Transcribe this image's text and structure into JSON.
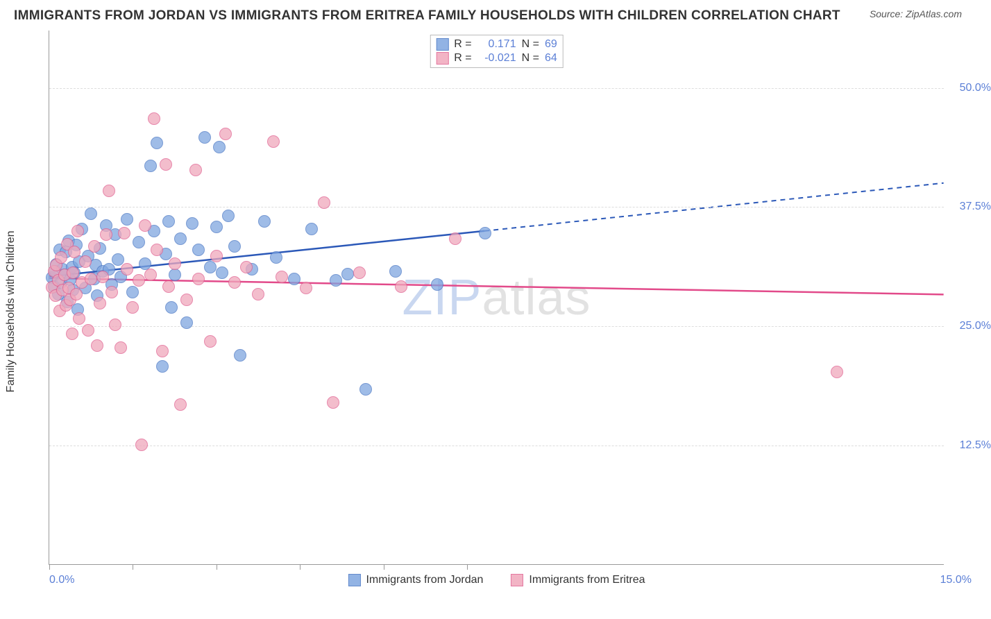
{
  "title": "IMMIGRANTS FROM JORDAN VS IMMIGRANTS FROM ERITREA FAMILY HOUSEHOLDS WITH CHILDREN CORRELATION CHART",
  "source_prefix": "Source: ",
  "source": "ZipAtlas.com",
  "ylabel": "Family Households with Children",
  "watermark_a": "ZIP",
  "watermark_b": "atlas",
  "chart": {
    "type": "scatter",
    "xlim": [
      0,
      15
    ],
    "ylim": [
      0,
      56
    ],
    "y_ticks": [
      12.5,
      25.0,
      37.5,
      50.0
    ],
    "y_tick_labels": [
      "12.5%",
      "25.0%",
      "37.5%",
      "50.0%"
    ],
    "x_tick_positions": [
      0,
      1.4,
      2.8,
      4.2,
      5.6,
      7.0
    ],
    "x_min_label": "0.0%",
    "x_max_label": "15.0%",
    "background_color": "#ffffff",
    "grid_color": "#dddddd",
    "axis_color": "#999999",
    "tick_label_color": "#5b7fd6",
    "point_radius": 9,
    "point_fill_opacity": 0.45,
    "series": [
      {
        "name": "Immigrants from Jordan",
        "color_fill": "#7fa6e0",
        "color_stroke": "#4a77c4",
        "r_value": "0.171",
        "n_value": "69",
        "trend": {
          "y_at_x0": 30.2,
          "y_at_x15": 40.0,
          "solid_until_x": 7.3
        },
        "trend_color": "#2b58b8",
        "points": [
          [
            0.05,
            30.1
          ],
          [
            0.08,
            29.2
          ],
          [
            0.1,
            30.8
          ],
          [
            0.12,
            31.5
          ],
          [
            0.15,
            28.4
          ],
          [
            0.18,
            33.0
          ],
          [
            0.2,
            29.6
          ],
          [
            0.22,
            31.0
          ],
          [
            0.25,
            30.4
          ],
          [
            0.28,
            32.8
          ],
          [
            0.3,
            27.6
          ],
          [
            0.32,
            34.0
          ],
          [
            0.35,
            29.9
          ],
          [
            0.38,
            31.2
          ],
          [
            0.4,
            28.8
          ],
          [
            0.42,
            30.6
          ],
          [
            0.45,
            33.5
          ],
          [
            0.48,
            26.8
          ],
          [
            0.5,
            31.8
          ],
          [
            0.55,
            35.2
          ],
          [
            0.6,
            29.0
          ],
          [
            0.65,
            32.4
          ],
          [
            0.7,
            36.8
          ],
          [
            0.75,
            30.0
          ],
          [
            0.78,
            31.4
          ],
          [
            0.8,
            28.2
          ],
          [
            0.85,
            33.2
          ],
          [
            0.9,
            30.8
          ],
          [
            0.95,
            35.6
          ],
          [
            1.0,
            31.0
          ],
          [
            1.05,
            29.4
          ],
          [
            1.1,
            34.6
          ],
          [
            1.15,
            32.0
          ],
          [
            1.2,
            30.2
          ],
          [
            1.3,
            36.2
          ],
          [
            1.4,
            28.6
          ],
          [
            1.5,
            33.8
          ],
          [
            1.6,
            31.6
          ],
          [
            1.7,
            41.8
          ],
          [
            1.75,
            35.0
          ],
          [
            1.8,
            44.2
          ],
          [
            1.9,
            20.8
          ],
          [
            1.95,
            32.6
          ],
          [
            2.0,
            36.0
          ],
          [
            2.1,
            30.4
          ],
          [
            2.2,
            34.2
          ],
          [
            2.3,
            25.4
          ],
          [
            2.4,
            35.8
          ],
          [
            2.5,
            33.0
          ],
          [
            2.6,
            44.8
          ],
          [
            2.7,
            31.2
          ],
          [
            2.8,
            35.4
          ],
          [
            2.85,
            43.8
          ],
          [
            2.9,
            30.6
          ],
          [
            3.0,
            36.6
          ],
          [
            3.1,
            33.4
          ],
          [
            3.2,
            22.0
          ],
          [
            3.4,
            31.0
          ],
          [
            3.6,
            36.0
          ],
          [
            3.8,
            32.2
          ],
          [
            4.1,
            30.0
          ],
          [
            4.4,
            35.2
          ],
          [
            4.8,
            29.8
          ],
          [
            5.0,
            30.5
          ],
          [
            5.3,
            18.4
          ],
          [
            5.8,
            30.8
          ],
          [
            6.5,
            29.4
          ],
          [
            7.3,
            34.8
          ],
          [
            2.05,
            27.0
          ]
        ]
      },
      {
        "name": "Immigrants from Eritrea",
        "color_fill": "#f0a8bc",
        "color_stroke": "#e06090",
        "r_value": "-0.021",
        "n_value": "64",
        "trend": {
          "y_at_x0": 30.0,
          "y_at_x15": 28.3,
          "solid_until_x": 15
        },
        "trend_color": "#e24a8a",
        "points": [
          [
            0.05,
            29.1
          ],
          [
            0.08,
            30.8
          ],
          [
            0.1,
            28.2
          ],
          [
            0.12,
            31.4
          ],
          [
            0.15,
            29.8
          ],
          [
            0.18,
            26.6
          ],
          [
            0.2,
            32.2
          ],
          [
            0.22,
            28.8
          ],
          [
            0.25,
            30.4
          ],
          [
            0.28,
            27.2
          ],
          [
            0.3,
            33.6
          ],
          [
            0.32,
            29.0
          ],
          [
            0.35,
            27.8
          ],
          [
            0.38,
            24.2
          ],
          [
            0.4,
            30.6
          ],
          [
            0.42,
            32.8
          ],
          [
            0.45,
            28.4
          ],
          [
            0.48,
            35.0
          ],
          [
            0.5,
            25.8
          ],
          [
            0.55,
            29.6
          ],
          [
            0.6,
            31.8
          ],
          [
            0.65,
            24.6
          ],
          [
            0.7,
            30.0
          ],
          [
            0.75,
            33.4
          ],
          [
            0.8,
            23.0
          ],
          [
            0.85,
            27.4
          ],
          [
            0.9,
            30.2
          ],
          [
            0.95,
            34.6
          ],
          [
            1.0,
            39.2
          ],
          [
            1.05,
            28.6
          ],
          [
            1.1,
            25.2
          ],
          [
            1.2,
            22.8
          ],
          [
            1.3,
            31.0
          ],
          [
            1.4,
            27.0
          ],
          [
            1.5,
            29.8
          ],
          [
            1.55,
            12.6
          ],
          [
            1.6,
            35.6
          ],
          [
            1.7,
            30.4
          ],
          [
            1.75,
            46.8
          ],
          [
            1.8,
            33.0
          ],
          [
            1.9,
            22.4
          ],
          [
            1.95,
            42.0
          ],
          [
            2.0,
            29.2
          ],
          [
            2.1,
            31.6
          ],
          [
            2.2,
            16.8
          ],
          [
            2.3,
            27.8
          ],
          [
            2.45,
            41.4
          ],
          [
            2.5,
            30.0
          ],
          [
            2.7,
            23.4
          ],
          [
            2.8,
            32.4
          ],
          [
            2.95,
            45.2
          ],
          [
            3.1,
            29.6
          ],
          [
            3.3,
            31.2
          ],
          [
            3.5,
            28.4
          ],
          [
            3.75,
            44.4
          ],
          [
            3.9,
            30.2
          ],
          [
            4.3,
            29.0
          ],
          [
            4.6,
            38.0
          ],
          [
            4.75,
            17.0
          ],
          [
            5.2,
            30.6
          ],
          [
            5.9,
            29.2
          ],
          [
            6.8,
            34.2
          ],
          [
            13.2,
            20.2
          ],
          [
            1.25,
            34.8
          ]
        ]
      }
    ]
  },
  "legend_r_label": "R =",
  "legend_n_label": "N ="
}
